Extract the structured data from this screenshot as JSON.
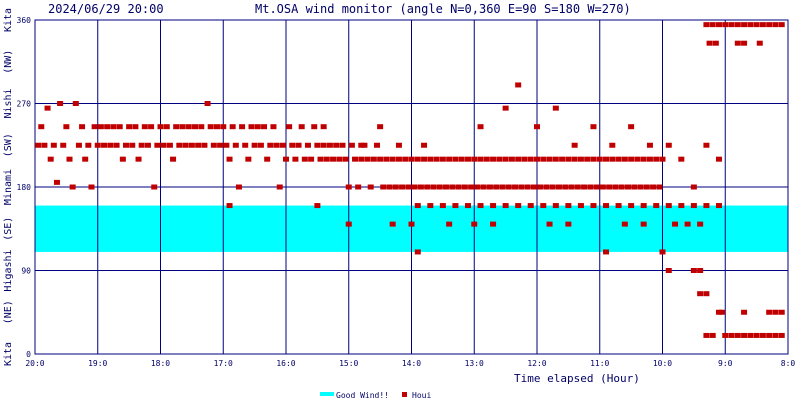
{
  "header": {
    "timestamp": "2024/06/29 20:00",
    "title": "Mt.OSA wind monitor (angle N=0,360 E=90 S=180 W=270)"
  },
  "chart_data": {
    "type": "scatter",
    "title": "Mt.OSA wind monitor (angle N=0,360 E=90 S=180 W=270)",
    "xlabel": "Time elapsed (Hour)",
    "ylabel": "Kita (NE) Higashi (SE) Minami (SW) Nishi (NW) Kita",
    "y_axis_side_labels": [
      "Kita",
      "(NE)",
      "Higashi",
      "(SE)",
      "Minami",
      "(SW)",
      "Nishi",
      "(NW)",
      "Kita"
    ],
    "ylim": [
      0,
      360
    ],
    "y_ticks": [
      "0",
      "90",
      "180",
      "270",
      "360"
    ],
    "x_range_hours_elapsed": [
      0,
      12
    ],
    "x_ticks": [
      "20:0",
      "19:0",
      "18:0",
      "17:0",
      "16:0",
      "15:0",
      "14:0",
      "13:0",
      "12:0",
      "11:0",
      "10:0",
      "9:0",
      "8:0"
    ],
    "x_direction": "time runs from 20:0 (left) back to 8:0 (right)",
    "grid": true,
    "legend_placement": "bottom-center",
    "legend": [
      {
        "name": "Good Wind!!",
        "color": "#00ffff"
      },
      {
        "name": "Houi",
        "color": "#c00000"
      }
    ],
    "good_wind_band": {
      "ymin": 110,
      "ymax": 160,
      "color": "#00ffff"
    },
    "series": [
      {
        "name": "Houi",
        "color": "#c00000",
        "points": [
          [
            0.05,
            225
          ],
          [
            0.1,
            245
          ],
          [
            0.15,
            225
          ],
          [
            0.2,
            265
          ],
          [
            0.25,
            210
          ],
          [
            0.3,
            225
          ],
          [
            0.35,
            185
          ],
          [
            0.4,
            270
          ],
          [
            0.45,
            225
          ],
          [
            0.5,
            245
          ],
          [
            0.55,
            210
          ],
          [
            0.6,
            180
          ],
          [
            0.65,
            270
          ],
          [
            0.7,
            225
          ],
          [
            0.75,
            245
          ],
          [
            0.8,
            210
          ],
          [
            0.85,
            225
          ],
          [
            0.9,
            180
          ],
          [
            0.95,
            245
          ],
          [
            1.0,
            225
          ],
          [
            1.05,
            245
          ],
          [
            1.1,
            225
          ],
          [
            1.15,
            245
          ],
          [
            1.2,
            225
          ],
          [
            1.25,
            245
          ],
          [
            1.3,
            225
          ],
          [
            1.35,
            245
          ],
          [
            1.4,
            210
          ],
          [
            1.45,
            225
          ],
          [
            1.5,
            245
          ],
          [
            1.55,
            225
          ],
          [
            1.6,
            245
          ],
          [
            1.65,
            210
          ],
          [
            1.7,
            225
          ],
          [
            1.75,
            245
          ],
          [
            1.8,
            225
          ],
          [
            1.85,
            245
          ],
          [
            1.9,
            180
          ],
          [
            1.95,
            225
          ],
          [
            2.0,
            245
          ],
          [
            2.05,
            225
          ],
          [
            2.1,
            245
          ],
          [
            2.15,
            225
          ],
          [
            2.2,
            210
          ],
          [
            2.25,
            245
          ],
          [
            2.3,
            225
          ],
          [
            2.35,
            245
          ],
          [
            2.4,
            225
          ],
          [
            2.45,
            245
          ],
          [
            2.5,
            225
          ],
          [
            2.55,
            245
          ],
          [
            2.6,
            225
          ],
          [
            2.65,
            245
          ],
          [
            2.7,
            225
          ],
          [
            2.75,
            270
          ],
          [
            2.8,
            245
          ],
          [
            2.85,
            225
          ],
          [
            2.9,
            245
          ],
          [
            2.95,
            225
          ],
          [
            3.0,
            245
          ],
          [
            3.05,
            225
          ],
          [
            3.1,
            210
          ],
          [
            3.15,
            245
          ],
          [
            3.2,
            225
          ],
          [
            3.25,
            180
          ],
          [
            3.3,
            245
          ],
          [
            3.35,
            225
          ],
          [
            3.4,
            210
          ],
          [
            3.45,
            245
          ],
          [
            3.5,
            225
          ],
          [
            3.55,
            245
          ],
          [
            3.6,
            225
          ],
          [
            3.65,
            245
          ],
          [
            3.7,
            210
          ],
          [
            3.75,
            225
          ],
          [
            3.8,
            245
          ],
          [
            3.85,
            225
          ],
          [
            3.9,
            180
          ],
          [
            3.95,
            225
          ],
          [
            4.0,
            210
          ],
          [
            4.05,
            245
          ],
          [
            4.1,
            225
          ],
          [
            4.15,
            210
          ],
          [
            4.2,
            225
          ],
          [
            4.25,
            245
          ],
          [
            4.3,
            210
          ],
          [
            4.35,
            225
          ],
          [
            4.4,
            210
          ],
          [
            4.45,
            245
          ],
          [
            4.5,
            225
          ],
          [
            4.55,
            210
          ],
          [
            4.6,
            225
          ],
          [
            4.65,
            210
          ],
          [
            4.7,
            225
          ],
          [
            4.75,
            210
          ],
          [
            4.8,
            225
          ],
          [
            4.85,
            210
          ],
          [
            4.9,
            225
          ],
          [
            4.95,
            210
          ],
          [
            5.0,
            180
          ],
          [
            5.05,
            225
          ],
          [
            5.1,
            210
          ],
          [
            5.15,
            180
          ],
          [
            5.2,
            210
          ],
          [
            5.25,
            225
          ],
          [
            5.3,
            210
          ],
          [
            5.35,
            180
          ],
          [
            5.4,
            210
          ],
          [
            5.45,
            225
          ],
          [
            5.5,
            210
          ],
          [
            5.55,
            180
          ],
          [
            5.6,
            210
          ],
          [
            5.65,
            180
          ],
          [
            5.7,
            210
          ],
          [
            5.75,
            180
          ],
          [
            5.8,
            210
          ],
          [
            5.85,
            180
          ],
          [
            5.9,
            210
          ],
          [
            5.95,
            180
          ],
          [
            6.0,
            210
          ],
          [
            6.05,
            180
          ],
          [
            6.1,
            210
          ],
          [
            6.15,
            180
          ],
          [
            6.2,
            210
          ],
          [
            6.25,
            180
          ],
          [
            6.3,
            210
          ],
          [
            6.35,
            180
          ],
          [
            6.4,
            210
          ],
          [
            6.45,
            180
          ],
          [
            6.5,
            210
          ],
          [
            6.55,
            180
          ],
          [
            6.6,
            210
          ],
          [
            6.65,
            180
          ],
          [
            6.7,
            210
          ],
          [
            6.75,
            180
          ],
          [
            6.8,
            210
          ],
          [
            6.85,
            180
          ],
          [
            6.9,
            210
          ],
          [
            6.95,
            180
          ],
          [
            7.0,
            210
          ],
          [
            7.05,
            180
          ],
          [
            7.1,
            210
          ],
          [
            7.15,
            180
          ],
          [
            7.2,
            210
          ],
          [
            7.25,
            180
          ],
          [
            7.3,
            210
          ],
          [
            7.35,
            180
          ],
          [
            7.4,
            210
          ],
          [
            7.45,
            180
          ],
          [
            7.5,
            210
          ],
          [
            7.55,
            180
          ],
          [
            7.6,
            210
          ],
          [
            7.65,
            180
          ],
          [
            7.7,
            210
          ],
          [
            7.75,
            180
          ],
          [
            7.8,
            210
          ],
          [
            7.85,
            180
          ],
          [
            7.9,
            210
          ],
          [
            7.95,
            180
          ],
          [
            8.0,
            210
          ],
          [
            8.05,
            180
          ],
          [
            8.1,
            210
          ],
          [
            8.15,
            180
          ],
          [
            8.2,
            210
          ],
          [
            8.25,
            180
          ],
          [
            8.3,
            210
          ],
          [
            8.35,
            180
          ],
          [
            8.4,
            210
          ],
          [
            8.45,
            180
          ],
          [
            8.5,
            210
          ],
          [
            8.55,
            180
          ],
          [
            8.6,
            210
          ],
          [
            8.65,
            180
          ],
          [
            8.7,
            210
          ],
          [
            8.75,
            180
          ],
          [
            8.8,
            210
          ],
          [
            8.85,
            180
          ],
          [
            8.9,
            210
          ],
          [
            8.95,
            180
          ],
          [
            9.0,
            210
          ],
          [
            9.05,
            180
          ],
          [
            9.1,
            210
          ],
          [
            9.15,
            180
          ],
          [
            9.2,
            210
          ],
          [
            9.25,
            180
          ],
          [
            9.3,
            210
          ],
          [
            9.35,
            180
          ],
          [
            9.4,
            210
          ],
          [
            9.45,
            180
          ],
          [
            9.5,
            210
          ],
          [
            9.55,
            180
          ],
          [
            9.6,
            210
          ],
          [
            9.65,
            180
          ],
          [
            9.7,
            210
          ],
          [
            9.75,
            180
          ],
          [
            9.8,
            210
          ],
          [
            9.85,
            180
          ],
          [
            9.9,
            210
          ],
          [
            9.95,
            180
          ],
          [
            10.0,
            210
          ],
          [
            4.6,
            245
          ],
          [
            5.2,
            225
          ],
          [
            5.5,
            245
          ],
          [
            5.8,
            225
          ],
          [
            6.2,
            225
          ],
          [
            7.1,
            245
          ],
          [
            7.5,
            265
          ],
          [
            7.7,
            290
          ],
          [
            8.0,
            245
          ],
          [
            8.3,
            265
          ],
          [
            8.6,
            225
          ],
          [
            8.9,
            245
          ],
          [
            9.2,
            225
          ],
          [
            9.5,
            245
          ],
          [
            9.8,
            225
          ],
          [
            10.1,
            225
          ],
          [
            10.3,
            210
          ],
          [
            10.5,
            180
          ],
          [
            10.7,
            225
          ],
          [
            10.9,
            210
          ],
          [
            6.1,
            160
          ],
          [
            6.3,
            160
          ],
          [
            6.5,
            160
          ],
          [
            6.7,
            160
          ],
          [
            6.9,
            160
          ],
          [
            7.1,
            160
          ],
          [
            7.3,
            160
          ],
          [
            7.5,
            160
          ],
          [
            7.7,
            160
          ],
          [
            7.9,
            160
          ],
          [
            8.1,
            160
          ],
          [
            8.3,
            160
          ],
          [
            8.5,
            160
          ],
          [
            8.7,
            160
          ],
          [
            8.9,
            160
          ],
          [
            9.1,
            160
          ],
          [
            9.3,
            160
          ],
          [
            9.5,
            160
          ],
          [
            9.7,
            160
          ],
          [
            9.9,
            160
          ],
          [
            10.1,
            160
          ],
          [
            10.3,
            160
          ],
          [
            10.5,
            160
          ],
          [
            10.7,
            160
          ],
          [
            10.9,
            160
          ],
          [
            3.1,
            160
          ],
          [
            4.5,
            160
          ],
          [
            5.0,
            140
          ],
          [
            5.7,
            140
          ],
          [
            6.0,
            140
          ],
          [
            6.6,
            140
          ],
          [
            7.0,
            140
          ],
          [
            7.3,
            140
          ],
          [
            8.2,
            140
          ],
          [
            8.5,
            140
          ],
          [
            9.4,
            140
          ],
          [
            9.7,
            140
          ],
          [
            10.2,
            140
          ],
          [
            10.4,
            140
          ],
          [
            10.6,
            140
          ],
          [
            6.1,
            110
          ],
          [
            9.1,
            110
          ],
          [
            10.0,
            110
          ],
          [
            10.1,
            90
          ],
          [
            10.5,
            90
          ],
          [
            10.6,
            90
          ],
          [
            10.6,
            65
          ],
          [
            10.7,
            65
          ],
          [
            10.7,
            20
          ],
          [
            10.8,
            20
          ],
          [
            10.9,
            45
          ],
          [
            10.95,
            45
          ],
          [
            11.0,
            20
          ],
          [
            11.1,
            20
          ],
          [
            11.2,
            20
          ],
          [
            11.3,
            20
          ],
          [
            11.4,
            20
          ],
          [
            11.5,
            20
          ],
          [
            11.6,
            20
          ],
          [
            11.7,
            20
          ],
          [
            11.8,
            20
          ],
          [
            11.9,
            20
          ],
          [
            11.3,
            45
          ],
          [
            11.7,
            45
          ],
          [
            11.8,
            45
          ],
          [
            11.9,
            45
          ],
          [
            10.7,
            355
          ],
          [
            10.8,
            355
          ],
          [
            10.9,
            355
          ],
          [
            11.0,
            355
          ],
          [
            11.1,
            355
          ],
          [
            11.2,
            355
          ],
          [
            11.3,
            355
          ],
          [
            11.4,
            355
          ],
          [
            11.5,
            355
          ],
          [
            11.6,
            355
          ],
          [
            11.7,
            355
          ],
          [
            11.8,
            355
          ],
          [
            11.9,
            355
          ],
          [
            10.75,
            335
          ],
          [
            10.85,
            335
          ],
          [
            11.2,
            335
          ],
          [
            11.3,
            335
          ],
          [
            11.55,
            335
          ]
        ]
      }
    ]
  }
}
